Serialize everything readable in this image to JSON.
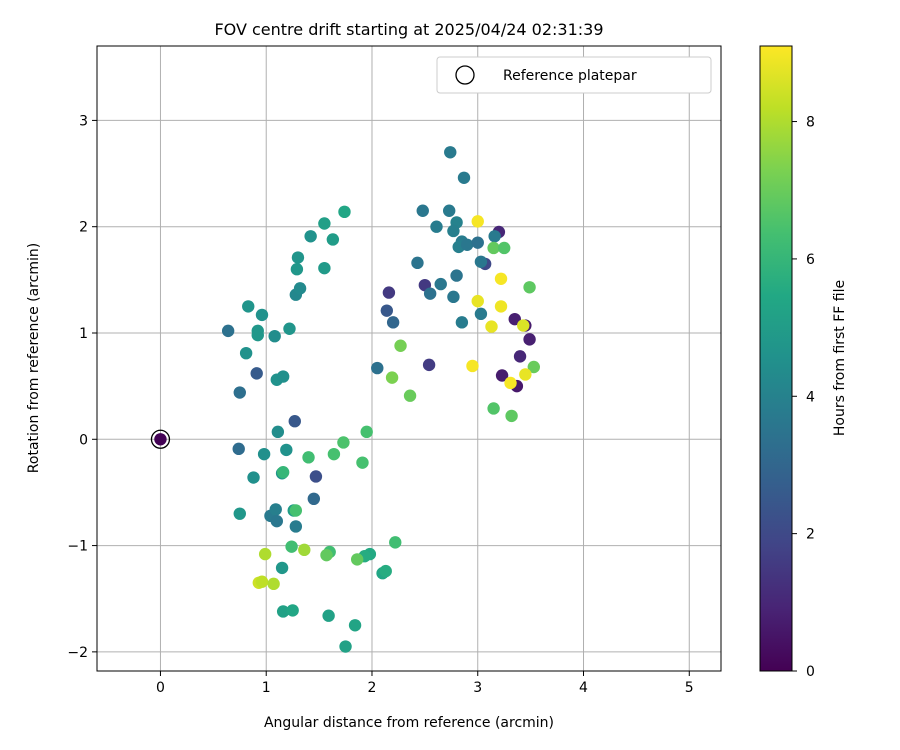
{
  "chart_data": {
    "type": "scatter",
    "title": "FOV centre drift starting at 2025/04/24 02:31:39",
    "xlabel": "Angular distance from reference (arcmin)",
    "ylabel": "Rotation from reference (arcmin)",
    "xlim": [
      -0.6,
      5.3
    ],
    "ylim": [
      -2.18,
      3.7
    ],
    "xticks": [
      0,
      1,
      2,
      3,
      4,
      5
    ],
    "yticks": [
      -2,
      -1,
      0,
      1,
      2,
      3
    ],
    "grid": true,
    "legend": {
      "position": "top-right",
      "entries": [
        "Reference platepar"
      ]
    },
    "reference_point": {
      "x": 0,
      "y": 0
    },
    "colorbar": {
      "label": "Hours from first FF file",
      "range": [
        0,
        9.1
      ],
      "ticks": [
        0,
        2,
        4,
        6,
        8
      ],
      "colormap": "viridis"
    },
    "points": [
      {
        "x": 0.0,
        "y": 0.0,
        "h": 0.05
      },
      {
        "x": 3.2,
        "y": 1.95,
        "h": 1.0
      },
      {
        "x": 2.16,
        "y": 1.38,
        "h": 1.5
      },
      {
        "x": 2.14,
        "y": 1.21,
        "h": 2.5
      },
      {
        "x": 2.2,
        "y": 1.1,
        "h": 3.0
      },
      {
        "x": 2.5,
        "y": 1.45,
        "h": 1.5
      },
      {
        "x": 2.54,
        "y": 0.7,
        "h": 1.6
      },
      {
        "x": 3.35,
        "y": 1.13,
        "h": 0.8
      },
      {
        "x": 3.45,
        "y": 1.07,
        "h": 0.7
      },
      {
        "x": 3.4,
        "y": 0.78,
        "h": 1.0
      },
      {
        "x": 3.49,
        "y": 0.94,
        "h": 0.8
      },
      {
        "x": 3.23,
        "y": 0.6,
        "h": 0.7
      },
      {
        "x": 3.37,
        "y": 0.5,
        "h": 0.6
      },
      {
        "x": 3.07,
        "y": 1.65,
        "h": 2.0
      },
      {
        "x": 1.27,
        "y": 0.17,
        "h": 2.5
      },
      {
        "x": 1.47,
        "y": -0.35,
        "h": 2.2
      },
      {
        "x": 0.91,
        "y": 0.62,
        "h": 2.6
      },
      {
        "x": 2.74,
        "y": 2.7,
        "h": 3.7
      },
      {
        "x": 2.87,
        "y": 2.46,
        "h": 3.7
      },
      {
        "x": 2.48,
        "y": 2.15,
        "h": 3.6
      },
      {
        "x": 2.73,
        "y": 2.15,
        "h": 3.7
      },
      {
        "x": 2.61,
        "y": 2.0,
        "h": 3.8
      },
      {
        "x": 2.8,
        "y": 2.04,
        "h": 4.0
      },
      {
        "x": 2.77,
        "y": 1.96,
        "h": 3.9
      },
      {
        "x": 2.85,
        "y": 1.86,
        "h": 3.8
      },
      {
        "x": 2.82,
        "y": 1.81,
        "h": 3.9
      },
      {
        "x": 2.9,
        "y": 1.83,
        "h": 3.6
      },
      {
        "x": 3.0,
        "y": 1.85,
        "h": 3.4
      },
      {
        "x": 3.03,
        "y": 1.67,
        "h": 3.6
      },
      {
        "x": 3.16,
        "y": 1.91,
        "h": 3.7
      },
      {
        "x": 2.8,
        "y": 1.54,
        "h": 3.5
      },
      {
        "x": 2.43,
        "y": 1.66,
        "h": 3.5
      },
      {
        "x": 2.55,
        "y": 1.37,
        "h": 3.4
      },
      {
        "x": 2.65,
        "y": 1.46,
        "h": 3.6
      },
      {
        "x": 2.77,
        "y": 1.34,
        "h": 3.6
      },
      {
        "x": 3.03,
        "y": 1.18,
        "h": 3.7
      },
      {
        "x": 2.85,
        "y": 1.1,
        "h": 3.8
      },
      {
        "x": 2.05,
        "y": 0.67,
        "h": 3.4
      },
      {
        "x": 0.64,
        "y": 1.02,
        "h": 3.4
      },
      {
        "x": 0.75,
        "y": 0.44,
        "h": 3.3
      },
      {
        "x": 0.74,
        "y": -0.09,
        "h": 3.2
      },
      {
        "x": 1.45,
        "y": -0.56,
        "h": 3.1
      },
      {
        "x": 1.28,
        "y": -0.82,
        "h": 3.8
      },
      {
        "x": 1.04,
        "y": -0.72,
        "h": 3.7
      },
      {
        "x": 1.09,
        "y": -0.66,
        "h": 3.9
      },
      {
        "x": 1.1,
        "y": -0.77,
        "h": 3.6
      },
      {
        "x": 1.28,
        "y": 1.36,
        "h": 4.2
      },
      {
        "x": 1.32,
        "y": 1.42,
        "h": 4.3
      },
      {
        "x": 1.3,
        "y": 1.71,
        "h": 4.7
      },
      {
        "x": 1.29,
        "y": 1.6,
        "h": 4.8
      },
      {
        "x": 1.42,
        "y": 1.91,
        "h": 4.6
      },
      {
        "x": 1.55,
        "y": 2.03,
        "h": 5.1
      },
      {
        "x": 1.74,
        "y": 2.14,
        "h": 5.4
      },
      {
        "x": 1.63,
        "y": 1.88,
        "h": 5.0
      },
      {
        "x": 1.55,
        "y": 1.61,
        "h": 4.9
      },
      {
        "x": 0.83,
        "y": 1.25,
        "h": 4.7
      },
      {
        "x": 0.96,
        "y": 1.17,
        "h": 4.6
      },
      {
        "x": 0.92,
        "y": 1.02,
        "h": 4.8
      },
      {
        "x": 0.92,
        "y": 0.98,
        "h": 4.8
      },
      {
        "x": 1.08,
        "y": 0.97,
        "h": 4.4
      },
      {
        "x": 1.22,
        "y": 1.04,
        "h": 4.7
      },
      {
        "x": 0.81,
        "y": 0.81,
        "h": 4.6
      },
      {
        "x": 1.1,
        "y": 0.56,
        "h": 4.6
      },
      {
        "x": 1.16,
        "y": 0.59,
        "h": 4.5
      },
      {
        "x": 1.11,
        "y": 0.07,
        "h": 4.4
      },
      {
        "x": 0.98,
        "y": -0.14,
        "h": 4.5
      },
      {
        "x": 1.19,
        "y": -0.1,
        "h": 4.6
      },
      {
        "x": 0.88,
        "y": -0.36,
        "h": 4.5
      },
      {
        "x": 1.15,
        "y": -0.32,
        "h": 4.7
      },
      {
        "x": 0.75,
        "y": -0.7,
        "h": 4.8
      },
      {
        "x": 1.26,
        "y": -0.67,
        "h": 5.0
      },
      {
        "x": 1.15,
        "y": -1.21,
        "h": 4.8
      },
      {
        "x": 1.16,
        "y": -1.62,
        "h": 5.2
      },
      {
        "x": 1.25,
        "y": -1.61,
        "h": 5.4
      },
      {
        "x": 1.59,
        "y": -1.66,
        "h": 5.2
      },
      {
        "x": 1.84,
        "y": -1.75,
        "h": 5.3
      },
      {
        "x": 1.75,
        "y": -1.95,
        "h": 5.2
      },
      {
        "x": 1.98,
        "y": -1.08,
        "h": 5.5
      },
      {
        "x": 1.93,
        "y": -1.1,
        "h": 5.6
      },
      {
        "x": 2.1,
        "y": -1.26,
        "h": 5.4
      },
      {
        "x": 2.13,
        "y": -1.24,
        "h": 5.6
      },
      {
        "x": 1.16,
        "y": -0.31,
        "h": 6.0
      },
      {
        "x": 1.28,
        "y": -0.67,
        "h": 6.4
      },
      {
        "x": 1.24,
        "y": -1.01,
        "h": 6.3
      },
      {
        "x": 1.4,
        "y": -0.17,
        "h": 6.3
      },
      {
        "x": 1.64,
        "y": -0.14,
        "h": 6.4
      },
      {
        "x": 1.73,
        "y": -0.03,
        "h": 6.5
      },
      {
        "x": 1.95,
        "y": 0.07,
        "h": 6.4
      },
      {
        "x": 1.91,
        "y": -0.22,
        "h": 6.4
      },
      {
        "x": 1.6,
        "y": -1.06,
        "h": 6.3
      },
      {
        "x": 1.57,
        "y": -1.09,
        "h": 6.9
      },
      {
        "x": 1.86,
        "y": -1.13,
        "h": 6.9
      },
      {
        "x": 2.22,
        "y": -0.97,
        "h": 6.3
      },
      {
        "x": 2.27,
        "y": 0.88,
        "h": 7.2
      },
      {
        "x": 2.19,
        "y": 0.58,
        "h": 7.3
      },
      {
        "x": 2.36,
        "y": 0.41,
        "h": 7.0
      },
      {
        "x": 3.15,
        "y": 1.8,
        "h": 6.9
      },
      {
        "x": 3.25,
        "y": 1.8,
        "h": 6.6
      },
      {
        "x": 3.49,
        "y": 1.43,
        "h": 6.8
      },
      {
        "x": 3.53,
        "y": 0.68,
        "h": 7.0
      },
      {
        "x": 3.15,
        "y": 0.29,
        "h": 6.6
      },
      {
        "x": 3.32,
        "y": 0.22,
        "h": 6.8
      },
      {
        "x": 1.36,
        "y": -1.04,
        "h": 7.8
      },
      {
        "x": 0.99,
        "y": -1.08,
        "h": 8.0
      },
      {
        "x": 0.93,
        "y": -1.35,
        "h": 8.4
      },
      {
        "x": 0.96,
        "y": -1.34,
        "h": 8.2
      },
      {
        "x": 1.07,
        "y": -1.36,
        "h": 8.0
      },
      {
        "x": 3.0,
        "y": 2.05,
        "h": 9.0
      },
      {
        "x": 3.22,
        "y": 1.51,
        "h": 9.0
      },
      {
        "x": 3.0,
        "y": 1.3,
        "h": 8.8
      },
      {
        "x": 3.22,
        "y": 1.25,
        "h": 8.9
      },
      {
        "x": 3.13,
        "y": 1.06,
        "h": 8.8
      },
      {
        "x": 3.43,
        "y": 1.07,
        "h": 8.6
      },
      {
        "x": 2.95,
        "y": 0.69,
        "h": 9.0
      },
      {
        "x": 3.45,
        "y": 0.61,
        "h": 8.8
      },
      {
        "x": 3.31,
        "y": 0.53,
        "h": 9.0
      }
    ]
  }
}
